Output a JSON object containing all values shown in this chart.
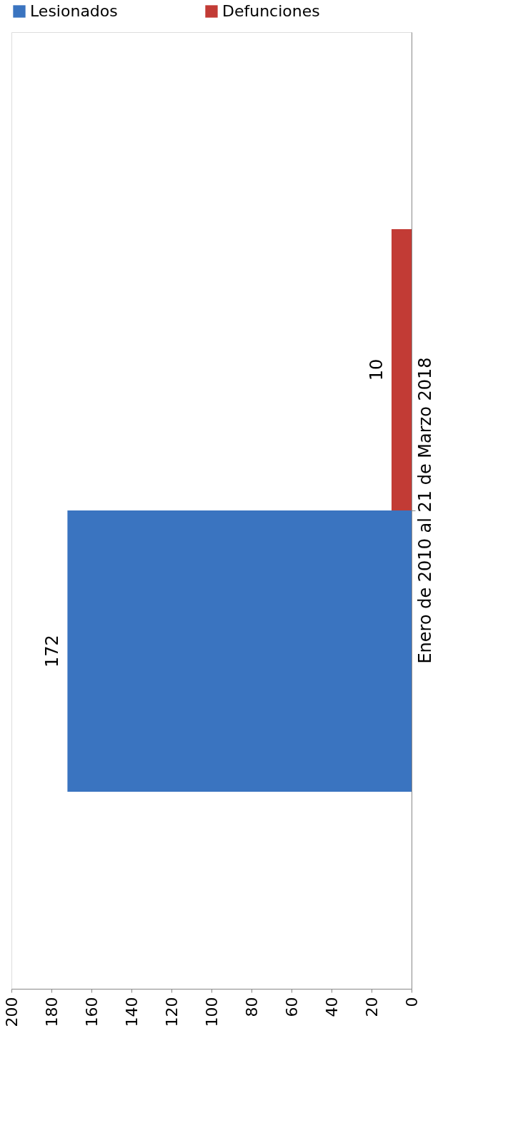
{
  "chart_data": {
    "type": "bar",
    "orientation": "horizontal",
    "categories": [
      "Enero de 2010 al 21 de Marzo 2018"
    ],
    "series": [
      {
        "name": "Lesionados",
        "color": "#3a74c0",
        "values": [
          172
        ]
      },
      {
        "name": "Defunciones",
        "color": "#c23b35",
        "values": [
          10
        ]
      }
    ],
    "xlim": [
      200,
      0
    ],
    "xticks": [
      0,
      20,
      40,
      60,
      80,
      100,
      120,
      140,
      160,
      180,
      200
    ],
    "grid": false,
    "legend": "top",
    "data_labels": true
  }
}
